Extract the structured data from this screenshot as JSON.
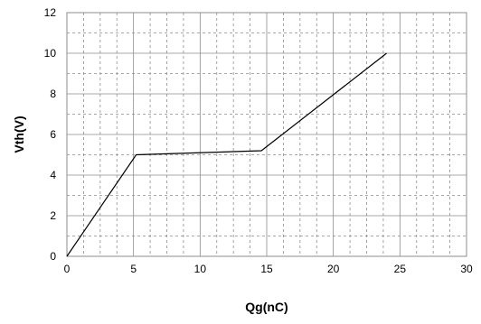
{
  "chart_data": {
    "type": "line",
    "title": "",
    "xlabel": "Qg(nC)",
    "ylabel": "Vth(V)",
    "xlim": [
      0,
      30
    ],
    "ylim": [
      0,
      12
    ],
    "xticks": [
      0,
      5,
      10,
      15,
      20,
      25,
      30
    ],
    "yticks": [
      0,
      2,
      4,
      6,
      8,
      10,
      12
    ],
    "x_minor_step": 1.25,
    "y_minor_step": 1,
    "grid": true,
    "legend": "none",
    "series": [
      {
        "x": [
          0,
          5.2,
          14.6,
          24
        ],
        "y": [
          0,
          5.0,
          5.2,
          10.0
        ]
      }
    ],
    "colors": {
      "line": "#000000",
      "grid": "#8c8c8c"
    }
  }
}
